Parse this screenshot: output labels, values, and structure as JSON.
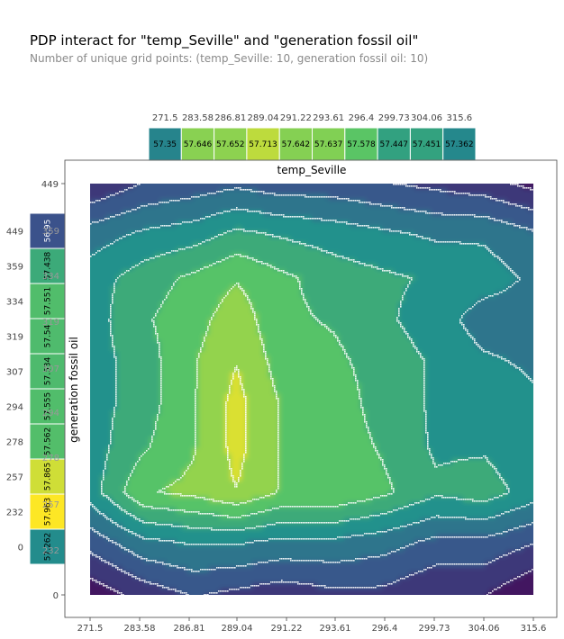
{
  "chart_data": {
    "type": "heatmap",
    "title": "PDP interact for \"temp_Seville\" and \"generation fossil oil\"",
    "subtitle": "Number of unique grid points: (temp_Seville: 10, generation fossil oil: 10)",
    "xlabel": "temp_Seville",
    "ylabel": "generation fossil oil",
    "x": [
      "271.5",
      "283.58",
      "286.81",
      "289.04",
      "291.22",
      "293.61",
      "296.4",
      "299.73",
      "304.06",
      "315.6"
    ],
    "y": [
      "0",
      "232",
      "257",
      "278",
      "294",
      "307",
      "319",
      "334",
      "359",
      "449"
    ],
    "top_pdp": {
      "ticks": [
        "271.5",
        "283.58",
        "286.81",
        "289.04",
        "291.22",
        "293.61",
        "296.4",
        "299.73",
        "304.06",
        "315.6"
      ],
      "values": [
        "57.35",
        "57.646",
        "57.652",
        "57.713",
        "57.642",
        "57.637",
        "57.578",
        "57.447",
        "57.451",
        "57.362"
      ]
    },
    "left_pdp": {
      "ticks": [
        "449",
        "359",
        "334",
        "319",
        "307",
        "294",
        "278",
        "257",
        "232",
        "0"
      ],
      "values": [
        "56.95",
        "57.438",
        "57.551",
        "57.54",
        "57.534",
        "57.555",
        "57.562",
        "57.865",
        "57.963",
        "57.262"
      ]
    },
    "behind_ticks": [
      "359",
      "334",
      "319",
      "307",
      "294",
      "278",
      "257",
      "232"
    ],
    "y_axis_ticks": [
      "449",
      "0"
    ],
    "colormap": [
      "#440154",
      "#3b528b",
      "#21918c",
      "#5ec962",
      "#fde725"
    ],
    "contour_levels": 9,
    "grid": false
  }
}
